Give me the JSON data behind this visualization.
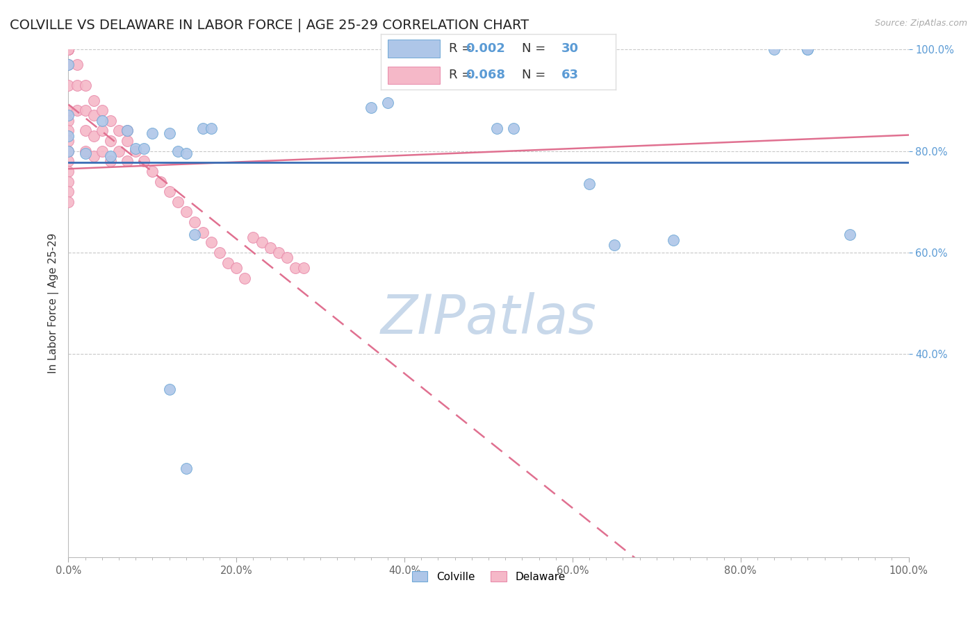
{
  "title": "COLVILLE VS DELAWARE IN LABOR FORCE | AGE 25-29 CORRELATION CHART",
  "source_text": "Source: ZipAtlas.com",
  "ylabel": "In Labor Force | Age 25-29",
  "xlim": [
    0.0,
    1.0
  ],
  "ylim": [
    0.0,
    1.0
  ],
  "x_tick_labels": [
    "0.0%",
    "",
    "",
    "",
    "",
    "",
    "",
    "",
    "",
    "",
    "20.0%",
    "",
    "",
    "",
    "",
    "",
    "",
    "",
    "",
    "",
    "40.0%",
    "",
    "",
    "",
    "",
    "",
    "",
    "",
    "",
    "",
    "60.0%",
    "",
    "",
    "",
    "",
    "",
    "",
    "",
    "",
    "",
    "80.0%",
    "",
    "",
    "",
    "",
    "",
    "",
    "",
    "",
    "",
    "100.0%"
  ],
  "x_tick_vals": [
    0.0,
    0.02,
    0.04,
    0.06,
    0.08,
    0.1,
    0.12,
    0.14,
    0.16,
    0.18,
    0.2,
    0.22,
    0.24,
    0.26,
    0.28,
    0.3,
    0.32,
    0.34,
    0.36,
    0.38,
    0.4,
    0.42,
    0.44,
    0.46,
    0.48,
    0.5,
    0.52,
    0.54,
    0.56,
    0.58,
    0.6,
    0.62,
    0.64,
    0.66,
    0.68,
    0.7,
    0.72,
    0.74,
    0.76,
    0.78,
    0.8,
    0.82,
    0.84,
    0.86,
    0.88,
    0.9,
    0.92,
    0.94,
    0.96,
    0.98,
    1.0
  ],
  "y_tick_labels": [
    "100.0%",
    "80.0%",
    "60.0%",
    "40.0%"
  ],
  "y_tick_vals": [
    1.0,
    0.8,
    0.6,
    0.4
  ],
  "colville_color": "#aec6e8",
  "delaware_color": "#f5b8c8",
  "colville_edge": "#6fa8d6",
  "delaware_edge": "#e88aaa",
  "trendline_colville_color": "#e07090",
  "trendline_delaware_color": "#e07090",
  "hline_color": "#3a6eb5",
  "hline_y": 0.778,
  "grid_color": "#c8c8c8",
  "watermark_text": "ZIPatlas",
  "watermark_color": "#c8d8ea",
  "legend_R_colville": "0.002",
  "legend_N_colville": "30",
  "legend_R_delaware": "0.068",
  "legend_N_delaware": "63",
  "colville_x": [
    0.0,
    0.0,
    0.0,
    0.0,
    0.02,
    0.04,
    0.05,
    0.07,
    0.08,
    0.09,
    0.1,
    0.12,
    0.13,
    0.14,
    0.16,
    0.17,
    0.36,
    0.38,
    0.51,
    0.53,
    0.62,
    0.65,
    0.72,
    0.84,
    0.88,
    0.88,
    0.93,
    0.12,
    0.14,
    0.15
  ],
  "colville_y": [
    0.97,
    0.87,
    0.83,
    0.8,
    0.795,
    0.86,
    0.79,
    0.84,
    0.805,
    0.805,
    0.835,
    0.835,
    0.8,
    0.795,
    0.845,
    0.845,
    0.885,
    0.895,
    0.845,
    0.845,
    0.735,
    0.615,
    0.625,
    1.0,
    1.0,
    1.0,
    0.635,
    0.33,
    0.175,
    0.635
  ],
  "delaware_x": [
    0.0,
    0.0,
    0.0,
    0.0,
    0.0,
    0.0,
    0.0,
    0.0,
    0.0,
    0.0,
    0.0,
    0.0,
    0.0,
    0.0,
    0.0,
    0.0,
    0.0,
    0.0,
    0.0,
    0.0,
    0.01,
    0.01,
    0.01,
    0.02,
    0.02,
    0.02,
    0.02,
    0.03,
    0.03,
    0.03,
    0.03,
    0.04,
    0.04,
    0.04,
    0.05,
    0.05,
    0.05,
    0.06,
    0.06,
    0.07,
    0.07,
    0.07,
    0.08,
    0.09,
    0.1,
    0.11,
    0.12,
    0.13,
    0.14,
    0.15,
    0.16,
    0.17,
    0.18,
    0.19,
    0.2,
    0.21,
    0.22,
    0.23,
    0.24,
    0.25,
    0.26,
    0.27,
    0.28
  ],
  "delaware_y": [
    1.0,
    1.0,
    1.0,
    1.0,
    1.0,
    1.0,
    1.0,
    1.0,
    0.97,
    0.93,
    0.88,
    0.86,
    0.84,
    0.82,
    0.8,
    0.78,
    0.76,
    0.74,
    0.72,
    0.7,
    0.97,
    0.93,
    0.88,
    0.93,
    0.88,
    0.84,
    0.8,
    0.9,
    0.87,
    0.83,
    0.79,
    0.88,
    0.84,
    0.8,
    0.86,
    0.82,
    0.78,
    0.84,
    0.8,
    0.84,
    0.82,
    0.78,
    0.8,
    0.78,
    0.76,
    0.74,
    0.72,
    0.7,
    0.68,
    0.66,
    0.64,
    0.62,
    0.6,
    0.58,
    0.57,
    0.55,
    0.63,
    0.62,
    0.61,
    0.6,
    0.59,
    0.57,
    0.57
  ],
  "background_color": "#ffffff",
  "title_fontsize": 14,
  "axis_fontsize": 11,
  "tick_fontsize": 10.5,
  "legend_fontsize": 13
}
